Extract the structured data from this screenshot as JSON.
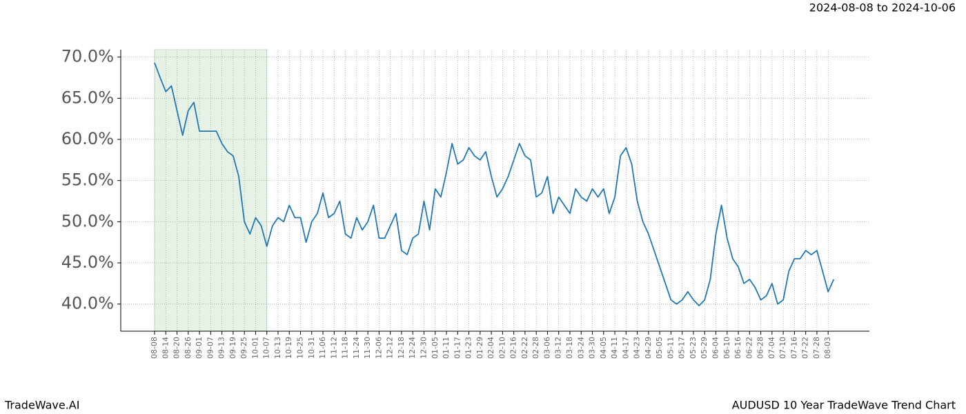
{
  "header": {
    "date_range": "2024-08-08 to 2024-10-06"
  },
  "footer": {
    "brand": "TradeWave.AI",
    "title": "AUDUSD 10 Year TradeWave Trend Chart"
  },
  "chart_data": {
    "type": "line",
    "categories": [
      "08-08",
      null,
      "08-14",
      null,
      "08-20",
      null,
      "08-26",
      null,
      "09-01",
      null,
      "09-07",
      null,
      "09-13",
      null,
      "09-19",
      null,
      "09-25",
      null,
      "10-01",
      null,
      "10-07",
      null,
      "10-13",
      null,
      "10-19",
      null,
      "10-25",
      null,
      "10-31",
      null,
      "11-06",
      null,
      "11-12",
      null,
      "11-18",
      null,
      "11-24",
      null,
      "11-30",
      null,
      "12-06",
      null,
      "12-12",
      null,
      "12-18",
      null,
      "12-24",
      null,
      "12-30",
      null,
      "01-05",
      null,
      "01-11",
      null,
      "01-17",
      null,
      "01-23",
      null,
      "01-29",
      null,
      "02-04",
      null,
      "02-10",
      null,
      "02-16",
      null,
      "02-22",
      null,
      "02-28",
      null,
      "03-06",
      null,
      "03-12",
      null,
      "03-18",
      null,
      "03-24",
      null,
      "03-30",
      null,
      "04-05",
      null,
      "04-11",
      null,
      "04-17",
      null,
      "04-23",
      null,
      "04-29",
      null,
      "05-05",
      null,
      "05-11",
      null,
      "05-17",
      null,
      "05-23",
      null,
      "05-29",
      null,
      "06-04",
      null,
      "06-10",
      null,
      "06-16",
      null,
      "06-22",
      null,
      "06-28",
      null,
      "07-04",
      null,
      "07-10",
      null,
      "07-16",
      null,
      "07-22",
      null,
      "07-28",
      null,
      "08-03",
      null
    ],
    "values": [
      69.3,
      67.5,
      65.8,
      66.5,
      63.5,
      60.5,
      63.5,
      64.5,
      61.0,
      61.0,
      61.0,
      61.0,
      59.5,
      58.5,
      58.0,
      55.5,
      50.0,
      48.5,
      50.5,
      49.5,
      47.0,
      49.5,
      50.5,
      50.0,
      52.0,
      50.5,
      50.5,
      47.5,
      50.0,
      51.0,
      53.5,
      50.5,
      51.0,
      52.5,
      48.5,
      48.0,
      50.5,
      49.0,
      50.0,
      52.0,
      48.0,
      48.0,
      49.5,
      51.0,
      46.5,
      46.0,
      48.0,
      48.5,
      52.5,
      49.0,
      54.0,
      53.0,
      56.0,
      59.5,
      57.0,
      57.5,
      59.0,
      58.0,
      57.5,
      58.5,
      55.5,
      53.0,
      54.0,
      55.5,
      57.5,
      59.5,
      58.0,
      57.5,
      53.0,
      53.5,
      55.5,
      51.0,
      53.0,
      52.0,
      51.0,
      54.0,
      53.0,
      52.5,
      54.0,
      53.0,
      54.0,
      51.0,
      53.0,
      58.0,
      59.0,
      57.0,
      52.5,
      50.0,
      48.5,
      46.5,
      44.5,
      42.5,
      40.5,
      40.0,
      40.5,
      41.5,
      40.5,
      39.8,
      40.5,
      43.0,
      48.5,
      52.0,
      48.0,
      45.5,
      44.5,
      42.5,
      43.0,
      42.0,
      40.5,
      41.0,
      42.5,
      40.0,
      40.5,
      44.0,
      45.5,
      45.5,
      46.5,
      46.0,
      46.5,
      44.0,
      41.5,
      43.0
    ],
    "color": "#1f77b4",
    "ylim": [
      36.7,
      70.9
    ],
    "yticks": [
      {
        "value": 40,
        "label": "40.0%"
      },
      {
        "value": 45,
        "label": "45.0%"
      },
      {
        "value": 50,
        "label": "50.0%"
      },
      {
        "value": 55,
        "label": "55.0%"
      },
      {
        "value": 60,
        "label": "60.0%"
      },
      {
        "value": 65,
        "label": "65.0%"
      },
      {
        "value": 70,
        "label": "70.0%"
      }
    ],
    "grid": true,
    "shaded": {
      "from": "08-08",
      "to": "10-07",
      "color": "#e6f2e6"
    }
  }
}
